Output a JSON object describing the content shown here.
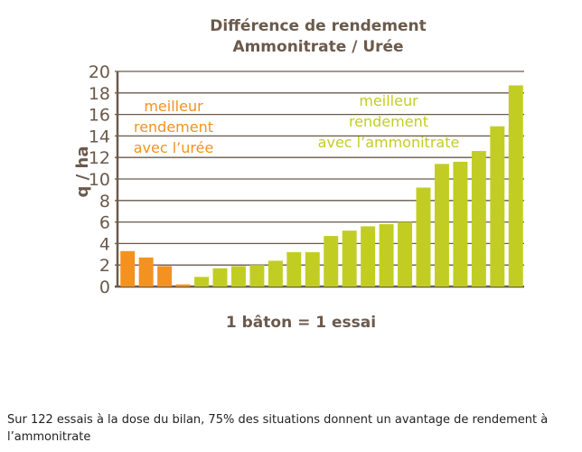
{
  "chart_data": {
    "type": "bar",
    "title": [
      "Différence de rendement",
      "Ammonitrate / Urée"
    ],
    "ylabel": "q / ha",
    "xlabel": "1 bâton = 1 essai",
    "ylim": [
      0,
      20
    ],
    "yticks": [
      0,
      2,
      4,
      6,
      8,
      10,
      12,
      14,
      16,
      18,
      20
    ],
    "grid": true,
    "values": [
      3.3,
      2.7,
      1.9,
      0.2,
      0.9,
      1.7,
      1.9,
      2.0,
      2.4,
      3.2,
      3.2,
      4.7,
      5.2,
      5.6,
      5.8,
      6.0,
      9.2,
      11.4,
      11.6,
      12.6,
      14.9,
      18.7
    ],
    "groups": [
      "uree",
      "uree",
      "uree",
      "uree",
      "ammo",
      "ammo",
      "ammo",
      "ammo",
      "ammo",
      "ammo",
      "ammo",
      "ammo",
      "ammo",
      "ammo",
      "ammo",
      "ammo",
      "ammo",
      "ammo",
      "ammo",
      "ammo",
      "ammo",
      "ammo"
    ],
    "annotations": {
      "uree": [
        "meilleur",
        "rendement",
        "avec l’urée"
      ],
      "ammo": [
        "meilleur",
        "rendement",
        "avec l’ammonitrate"
      ]
    },
    "colors": {
      "uree": "#f39220",
      "ammo": "#c2cd23",
      "text": "#6b5a4c",
      "grid": "#6b5a4c"
    }
  },
  "caption": "Sur 122 essais à la dose du bilan, 75% des situations donnent un avantage de rendement à l’ammonitrate"
}
